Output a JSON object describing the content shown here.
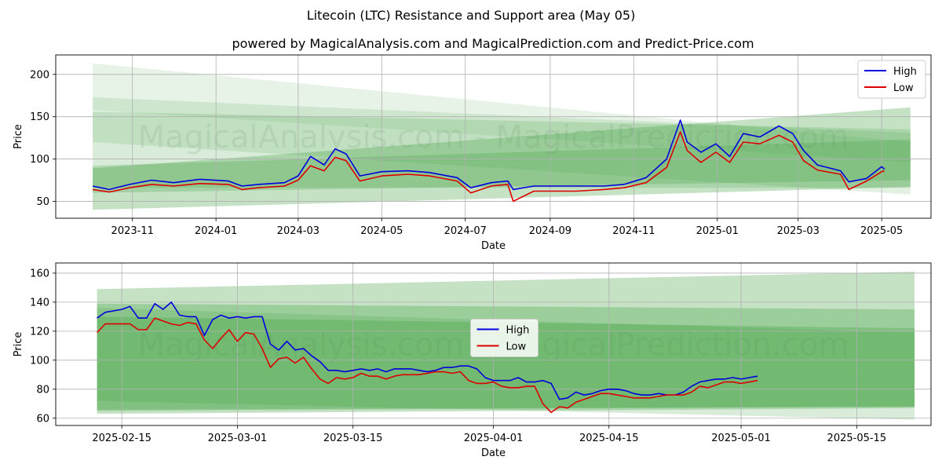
{
  "title": "Litecoin (LTC) Resistance and Support area (May 05)",
  "subtitle": "powered by MagicalAnalysis.com and MagicalPrediction.com and Predict-Price.com",
  "watermark": "MagicalAnalysis.com - MagicalPrediction.com",
  "colors": {
    "high": "#0000dd",
    "low": "#dd0000",
    "band": "#3f9f3f",
    "grid": "#b0b0b0"
  },
  "chart_data": [
    {
      "type": "line",
      "xlabel": "Date",
      "ylabel": "Price",
      "ylim": [
        30,
        223
      ],
      "xlim": [
        "2023-09-06",
        "2025-06-06"
      ],
      "yticks": [
        50,
        100,
        150,
        200
      ],
      "xticks": [
        "2023-11",
        "2024-01",
        "2024-03",
        "2024-05",
        "2024-07",
        "2024-09",
        "2024-11",
        "2025-01",
        "2025-03",
        "2025-05"
      ],
      "grid": true,
      "legend": "top-right",
      "bands": [
        {
          "x": [
            "2023-10-03",
            "2025-05-22"
          ],
          "upper": [
            213,
            120
          ],
          "lower": [
            158,
            96
          ],
          "opacity": 0.12
        },
        {
          "x": [
            "2023-10-03",
            "2025-05-22"
          ],
          "upper": [
            173,
            131
          ],
          "lower": [
            120,
            58
          ],
          "opacity": 0.15
        },
        {
          "x": [
            "2023-10-03",
            "2025-05-22"
          ],
          "upper": [
            156,
            135
          ],
          "lower": [
            66,
            66
          ],
          "opacity": 0.2
        },
        {
          "x": [
            "2023-10-03",
            "2025-05-22"
          ],
          "upper": [
            89,
            161
          ],
          "lower": [
            40,
            67
          ],
          "opacity": 0.3
        },
        {
          "x": [
            "2023-10-03",
            "2025-05-22"
          ],
          "upper": [
            92,
            123
          ],
          "lower": [
            60,
            75
          ],
          "opacity": 0.25
        }
      ],
      "series": [
        {
          "name": "High",
          "color": "#0000dd",
          "x": [
            "2023-10-03",
            "2023-10-15",
            "2023-10-30",
            "2023-11-15",
            "2023-12-01",
            "2023-12-20",
            "2024-01-10",
            "2024-01-20",
            "2024-02-01",
            "2024-02-20",
            "2024-03-01",
            "2024-03-10",
            "2024-03-20",
            "2024-03-28",
            "2024-04-05",
            "2024-04-15",
            "2024-05-01",
            "2024-05-20",
            "2024-06-05",
            "2024-06-25",
            "2024-07-05",
            "2024-07-20",
            "2024-08-01",
            "2024-08-05",
            "2024-08-20",
            "2024-09-01",
            "2024-09-20",
            "2024-10-10",
            "2024-10-25",
            "2024-11-10",
            "2024-11-25",
            "2024-12-05",
            "2024-12-10",
            "2024-12-20",
            "2024-12-31",
            "2025-01-10",
            "2025-01-20",
            "2025-02-01",
            "2025-02-15",
            "2025-02-25",
            "2025-03-05",
            "2025-03-15",
            "2025-04-01",
            "2025-04-07",
            "2025-04-20",
            "2025-05-01",
            "2025-05-03"
          ],
          "values": [
            68,
            64,
            70,
            75,
            72,
            76,
            74,
            68,
            70,
            72,
            80,
            103,
            93,
            112,
            106,
            80,
            85,
            86,
            84,
            78,
            66,
            72,
            74,
            64,
            68,
            68,
            68,
            68,
            70,
            78,
            100,
            146,
            120,
            108,
            118,
            103,
            130,
            126,
            139,
            130,
            110,
            93,
            86,
            73,
            77,
            91,
            88
          ]
        },
        {
          "name": "Low",
          "color": "#dd0000",
          "x": [
            "2023-10-03",
            "2023-10-15",
            "2023-10-30",
            "2023-11-15",
            "2023-12-01",
            "2023-12-20",
            "2024-01-10",
            "2024-01-20",
            "2024-02-01",
            "2024-02-20",
            "2024-03-01",
            "2024-03-10",
            "2024-03-20",
            "2024-03-28",
            "2024-04-05",
            "2024-04-15",
            "2024-05-01",
            "2024-05-20",
            "2024-06-05",
            "2024-06-25",
            "2024-07-05",
            "2024-07-20",
            "2024-08-01",
            "2024-08-05",
            "2024-08-20",
            "2024-09-01",
            "2024-09-20",
            "2024-10-10",
            "2024-10-25",
            "2024-11-10",
            "2024-11-25",
            "2024-12-05",
            "2024-12-10",
            "2024-12-20",
            "2024-12-31",
            "2025-01-10",
            "2025-01-20",
            "2025-02-01",
            "2025-02-15",
            "2025-02-25",
            "2025-03-05",
            "2025-03-15",
            "2025-04-01",
            "2025-04-07",
            "2025-04-20",
            "2025-05-01",
            "2025-05-03"
          ],
          "values": [
            64,
            61,
            66,
            70,
            68,
            71,
            70,
            64,
            66,
            68,
            75,
            92,
            86,
            102,
            98,
            74,
            80,
            82,
            80,
            74,
            60,
            68,
            70,
            50,
            62,
            62,
            62,
            64,
            66,
            72,
            90,
            132,
            110,
            96,
            108,
            96,
            120,
            118,
            128,
            120,
            98,
            87,
            82,
            64,
            74,
            85,
            86
          ]
        }
      ]
    },
    {
      "type": "line",
      "xlabel": "Date",
      "ylabel": "Price",
      "ylim": [
        55,
        167
      ],
      "xlim": [
        "2025-02-07",
        "2025-05-24"
      ],
      "yticks": [
        60,
        80,
        100,
        120,
        140,
        160
      ],
      "xticks": [
        "2025-02-15",
        "2025-03-01",
        "2025-03-15",
        "2025-04-01",
        "2025-04-15",
        "2025-05-01",
        "2025-05-15"
      ],
      "grid": true,
      "legend": "center",
      "bands": [
        {
          "x": [
            "2025-02-12",
            "2025-05-22"
          ],
          "upper": [
            149,
            161
          ],
          "lower": [
            63,
            67
          ],
          "opacity": 0.3
        },
        {
          "x": [
            "2025-02-12",
            "2025-05-22"
          ],
          "upper": [
            139,
            135
          ],
          "lower": [
            65,
            68
          ],
          "opacity": 0.3
        },
        {
          "x": [
            "2025-02-12",
            "2025-05-22"
          ],
          "upper": [
            136,
            119
          ],
          "lower": [
            72,
            59
          ],
          "opacity": 0.2
        },
        {
          "x": [
            "2025-02-12",
            "2025-05-22"
          ],
          "upper": [
            130,
            122
          ],
          "lower": [
            66,
            68
          ],
          "opacity": 0.3
        }
      ],
      "series": [
        {
          "name": "High",
          "color": "#0000dd",
          "x": [
            "2025-02-12",
            "2025-02-13",
            "2025-02-14",
            "2025-02-15",
            "2025-02-16",
            "2025-02-17",
            "2025-02-18",
            "2025-02-19",
            "2025-02-20",
            "2025-02-21",
            "2025-02-22",
            "2025-02-23",
            "2025-02-24",
            "2025-02-25",
            "2025-02-26",
            "2025-02-27",
            "2025-02-28",
            "2025-03-01",
            "2025-03-02",
            "2025-03-03",
            "2025-03-04",
            "2025-03-05",
            "2025-03-06",
            "2025-03-07",
            "2025-03-08",
            "2025-03-09",
            "2025-03-10",
            "2025-03-11",
            "2025-03-12",
            "2025-03-13",
            "2025-03-14",
            "2025-03-15",
            "2025-03-16",
            "2025-03-17",
            "2025-03-18",
            "2025-03-19",
            "2025-03-20",
            "2025-03-21",
            "2025-03-22",
            "2025-03-23",
            "2025-03-24",
            "2025-03-25",
            "2025-03-26",
            "2025-03-27",
            "2025-03-28",
            "2025-03-29",
            "2025-03-30",
            "2025-03-31",
            "2025-04-01",
            "2025-04-02",
            "2025-04-03",
            "2025-04-04",
            "2025-04-05",
            "2025-04-06",
            "2025-04-07",
            "2025-04-08",
            "2025-04-09",
            "2025-04-10",
            "2025-04-11",
            "2025-04-12",
            "2025-04-13",
            "2025-04-14",
            "2025-04-15",
            "2025-04-16",
            "2025-04-17",
            "2025-04-18",
            "2025-04-19",
            "2025-04-20",
            "2025-04-21",
            "2025-04-22",
            "2025-04-23",
            "2025-04-24",
            "2025-04-25",
            "2025-04-26",
            "2025-04-27",
            "2025-04-28",
            "2025-04-29",
            "2025-04-30",
            "2025-05-01",
            "2025-05-02",
            "2025-05-03"
          ],
          "values": [
            129,
            133,
            134,
            135,
            137,
            129,
            129,
            139,
            135,
            140,
            131,
            130,
            130,
            117,
            128,
            131,
            129,
            130,
            129,
            130,
            130,
            111,
            107,
            113,
            107,
            108,
            103,
            99,
            93,
            93,
            92,
            93,
            94,
            93,
            94,
            92,
            94,
            94,
            94,
            93,
            92,
            93,
            95,
            95,
            96,
            96,
            94,
            88,
            86,
            86,
            86,
            88,
            85,
            85,
            86,
            84,
            73,
            74,
            78,
            76,
            77,
            79,
            80,
            80,
            79,
            77,
            76,
            76,
            77,
            76,
            76,
            78,
            82,
            85,
            86,
            87,
            87,
            88,
            87,
            88,
            89
          ]
        },
        {
          "name": "Low",
          "color": "#dd0000",
          "x": [
            "2025-02-12",
            "2025-02-13",
            "2025-02-14",
            "2025-02-15",
            "2025-02-16",
            "2025-02-17",
            "2025-02-18",
            "2025-02-19",
            "2025-02-20",
            "2025-02-21",
            "2025-02-22",
            "2025-02-23",
            "2025-02-24",
            "2025-02-25",
            "2025-02-26",
            "2025-02-27",
            "2025-02-28",
            "2025-03-01",
            "2025-03-02",
            "2025-03-03",
            "2025-03-04",
            "2025-03-05",
            "2025-03-06",
            "2025-03-07",
            "2025-03-08",
            "2025-03-09",
            "2025-03-10",
            "2025-03-11",
            "2025-03-12",
            "2025-03-13",
            "2025-03-14",
            "2025-03-15",
            "2025-03-16",
            "2025-03-17",
            "2025-03-18",
            "2025-03-19",
            "2025-03-20",
            "2025-03-21",
            "2025-03-22",
            "2025-03-23",
            "2025-03-24",
            "2025-03-25",
            "2025-03-26",
            "2025-03-27",
            "2025-03-28",
            "2025-03-29",
            "2025-03-30",
            "2025-03-31",
            "2025-04-01",
            "2025-04-02",
            "2025-04-03",
            "2025-04-04",
            "2025-04-05",
            "2025-04-06",
            "2025-04-07",
            "2025-04-08",
            "2025-04-09",
            "2025-04-10",
            "2025-04-11",
            "2025-04-12",
            "2025-04-13",
            "2025-04-14",
            "2025-04-15",
            "2025-04-16",
            "2025-04-17",
            "2025-04-18",
            "2025-04-19",
            "2025-04-20",
            "2025-04-21",
            "2025-04-22",
            "2025-04-23",
            "2025-04-24",
            "2025-04-25",
            "2025-04-26",
            "2025-04-27",
            "2025-04-28",
            "2025-04-29",
            "2025-04-30",
            "2025-05-01",
            "2025-05-02",
            "2025-05-03"
          ],
          "values": [
            119,
            125,
            125,
            125,
            125,
            121,
            121,
            129,
            127,
            125,
            124,
            126,
            125,
            114,
            108,
            115,
            121,
            113,
            119,
            118,
            108,
            95,
            101,
            102,
            98,
            102,
            94,
            87,
            84,
            88,
            87,
            88,
            91,
            89,
            89,
            87,
            89,
            90,
            90,
            90,
            91,
            92,
            92,
            91,
            92,
            86,
            84,
            84,
            85,
            82,
            81,
            81,
            82,
            82,
            70,
            64,
            68,
            67,
            71,
            73,
            75,
            77,
            77,
            76,
            75,
            74,
            74,
            74,
            75,
            76,
            76,
            76,
            78,
            82,
            81,
            83,
            85,
            85,
            84,
            85,
            86
          ]
        }
      ]
    }
  ]
}
